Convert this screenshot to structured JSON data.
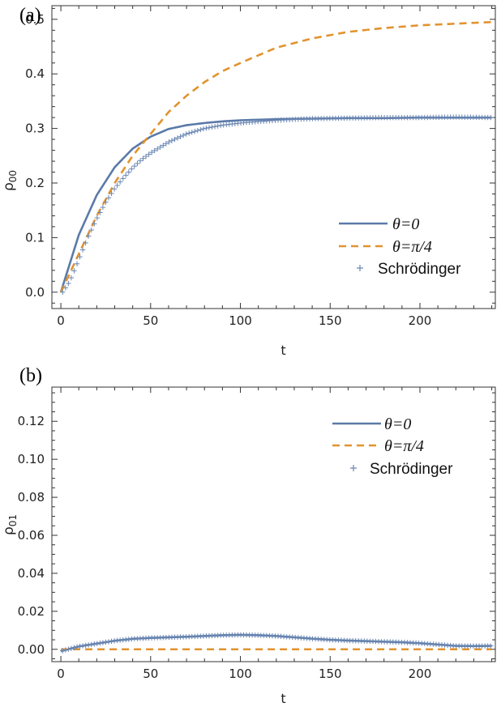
{
  "chart_data": [
    {
      "type": "line",
      "panel_label": "(a)",
      "xlabel": "t",
      "ylabel": "ρ",
      "ylabel_sub": "00",
      "xlim": [
        -5,
        242
      ],
      "ylim": [
        -0.03,
        0.525
      ],
      "xticks": [
        "0",
        "50",
        "100",
        "150",
        "200"
      ],
      "yticks": [
        "0.0",
        "0.1",
        "0.2",
        "0.3",
        "0.4",
        "0.5"
      ],
      "legend_position": "bottom-right",
      "series": [
        {
          "name": "θ=0",
          "style": "solid",
          "color": "#5a7aa8",
          "x": [
            0,
            10,
            20,
            30,
            40,
            50,
            60,
            70,
            80,
            90,
            100,
            120,
            140,
            160,
            180,
            200,
            220,
            240
          ],
          "y": [
            0.0,
            0.105,
            0.178,
            0.229,
            0.263,
            0.285,
            0.299,
            0.306,
            0.31,
            0.313,
            0.315,
            0.317,
            0.318,
            0.319,
            0.319,
            0.32,
            0.32,
            0.32
          ]
        },
        {
          "name": "θ=π/4",
          "style": "dashed",
          "color": "#e1932f",
          "x": [
            0,
            10,
            20,
            30,
            40,
            50,
            60,
            70,
            80,
            90,
            100,
            120,
            140,
            160,
            180,
            200,
            220,
            240
          ],
          "y": [
            0.0,
            0.07,
            0.14,
            0.2,
            0.25,
            0.29,
            0.33,
            0.36,
            0.385,
            0.405,
            0.42,
            0.448,
            0.465,
            0.477,
            0.484,
            0.489,
            0.492,
            0.495
          ]
        },
        {
          "name": "Schrödinger",
          "style": "markers",
          "color": "#6a86b2",
          "x": [
            0,
            5,
            10,
            15,
            20,
            25,
            30,
            35,
            40,
            45,
            50,
            60,
            70,
            80,
            90,
            100,
            120,
            140,
            160,
            180,
            200,
            220,
            240
          ],
          "y": [
            -0.005,
            0.02,
            0.06,
            0.1,
            0.135,
            0.165,
            0.19,
            0.21,
            0.228,
            0.243,
            0.255,
            0.275,
            0.29,
            0.3,
            0.306,
            0.31,
            0.315,
            0.318,
            0.319,
            0.32,
            0.32,
            0.321,
            0.32
          ]
        }
      ]
    },
    {
      "type": "line",
      "panel_label": "(b)",
      "xlabel": "t",
      "ylabel": "ρ",
      "ylabel_sub": "01",
      "xlim": [
        -5,
        242
      ],
      "ylim": [
        -0.0065,
        0.138
      ],
      "xticks": [
        "0",
        "50",
        "100",
        "150",
        "200"
      ],
      "yticks": [
        "0.00",
        "0.02",
        "0.04",
        "0.06",
        "0.08",
        "0.10",
        "0.12"
      ],
      "legend_position": "top-right",
      "series": [
        {
          "name": "θ=0",
          "style": "solid",
          "color": "#5a7aa8",
          "x": [
            0,
            10,
            20,
            30,
            40,
            50,
            60,
            70,
            80,
            90,
            100,
            110,
            120,
            130,
            140,
            150,
            160,
            170,
            180,
            190,
            200,
            210,
            220,
            230,
            240
          ],
          "y": [
            -0.001,
            0.0015,
            0.003,
            0.0045,
            0.0055,
            0.006,
            0.0063,
            0.0066,
            0.007,
            0.0074,
            0.0076,
            0.0074,
            0.007,
            0.0063,
            0.0056,
            0.005,
            0.0046,
            0.0043,
            0.004,
            0.0037,
            0.0032,
            0.0025,
            0.0018,
            0.0017,
            0.0018
          ]
        },
        {
          "name": "θ=π/4",
          "style": "dashed",
          "color": "#e1932f",
          "x": [
            0,
            240
          ],
          "y": [
            0.0,
            0.0
          ]
        },
        {
          "name": "Schrödinger",
          "style": "markers",
          "color": "#6a86b2",
          "x": [
            0,
            10,
            20,
            30,
            40,
            50,
            60,
            70,
            80,
            90,
            100,
            110,
            120,
            130,
            140,
            150,
            160,
            170,
            180,
            190,
            200,
            210,
            220,
            230,
            240
          ],
          "y": [
            -0.001,
            0.0015,
            0.003,
            0.0045,
            0.0055,
            0.006,
            0.0063,
            0.0066,
            0.007,
            0.0074,
            0.0076,
            0.0074,
            0.007,
            0.0063,
            0.0056,
            0.005,
            0.0046,
            0.0043,
            0.004,
            0.0037,
            0.0032,
            0.0025,
            0.0018,
            0.0017,
            0.0018
          ]
        }
      ]
    }
  ]
}
